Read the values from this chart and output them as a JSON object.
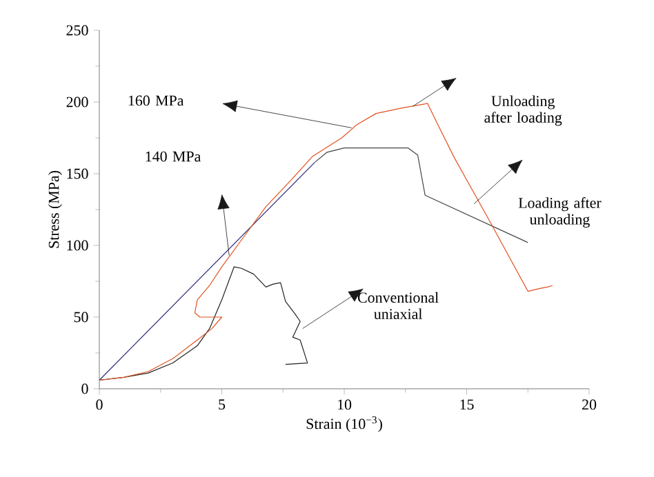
{
  "chart_data": {
    "type": "line",
    "xlabel": "Strain (10$^{−3}$)",
    "ylabel": "Stress (MPa)",
    "xlim": [
      0,
      20
    ],
    "ylim": [
      0,
      250
    ],
    "xticks": [
      0,
      5,
      10,
      15,
      20
    ],
    "yticks": [
      0,
      50,
      100,
      150,
      200,
      250
    ],
    "grid": false,
    "marker": "none",
    "line_style": "solid",
    "series": [
      {
        "color": "#2b2a7c",
        "x": [
          0,
          8.8
        ],
        "values": [
          6,
          158
        ]
      },
      {
        "color": "#444444",
        "x": [
          8.8,
          9.3,
          10,
          12.6,
          13.0,
          13.3,
          17.5
        ],
        "values": [
          158,
          165,
          168,
          168,
          163,
          135,
          102
        ]
      },
      {
        "color": "#222222",
        "x": [
          0,
          1,
          2,
          3,
          4,
          4.5,
          5,
          5.5,
          5.8,
          6.3,
          6.8,
          7.1,
          7.4,
          7.6,
          8.0,
          8.2,
          7.9,
          8.2,
          8.5,
          7.6
        ],
        "values": [
          6,
          8,
          11,
          18,
          30,
          42,
          62,
          85,
          84,
          80,
          71,
          73,
          74,
          61,
          52,
          47,
          36,
          34,
          18,
          17
        ]
      },
      {
        "color": "#e0501e",
        "x": [
          0,
          1,
          2,
          3,
          4,
          4.6,
          5.0,
          4.1,
          3.9,
          4.0,
          4.5,
          5.0,
          5.9,
          6.8,
          7.8,
          8.7,
          9.9,
          10.5,
          11.3,
          12.4,
          13.4,
          13.8,
          14.5,
          16.0,
          17.5,
          18.0,
          18.3,
          18.5
        ],
        "values": [
          6,
          8,
          12,
          21,
          34,
          42,
          50,
          50,
          53,
          62,
          72,
          85,
          106,
          127,
          145,
          162,
          175,
          184,
          192,
          196,
          199,
          185,
          161,
          115,
          68,
          70,
          71,
          72
        ]
      }
    ],
    "annotations": [
      "160 MPa",
      "140 MPa",
      "Unloading after loading",
      "Loading after unloading",
      "Conventional uniaxial"
    ]
  }
}
